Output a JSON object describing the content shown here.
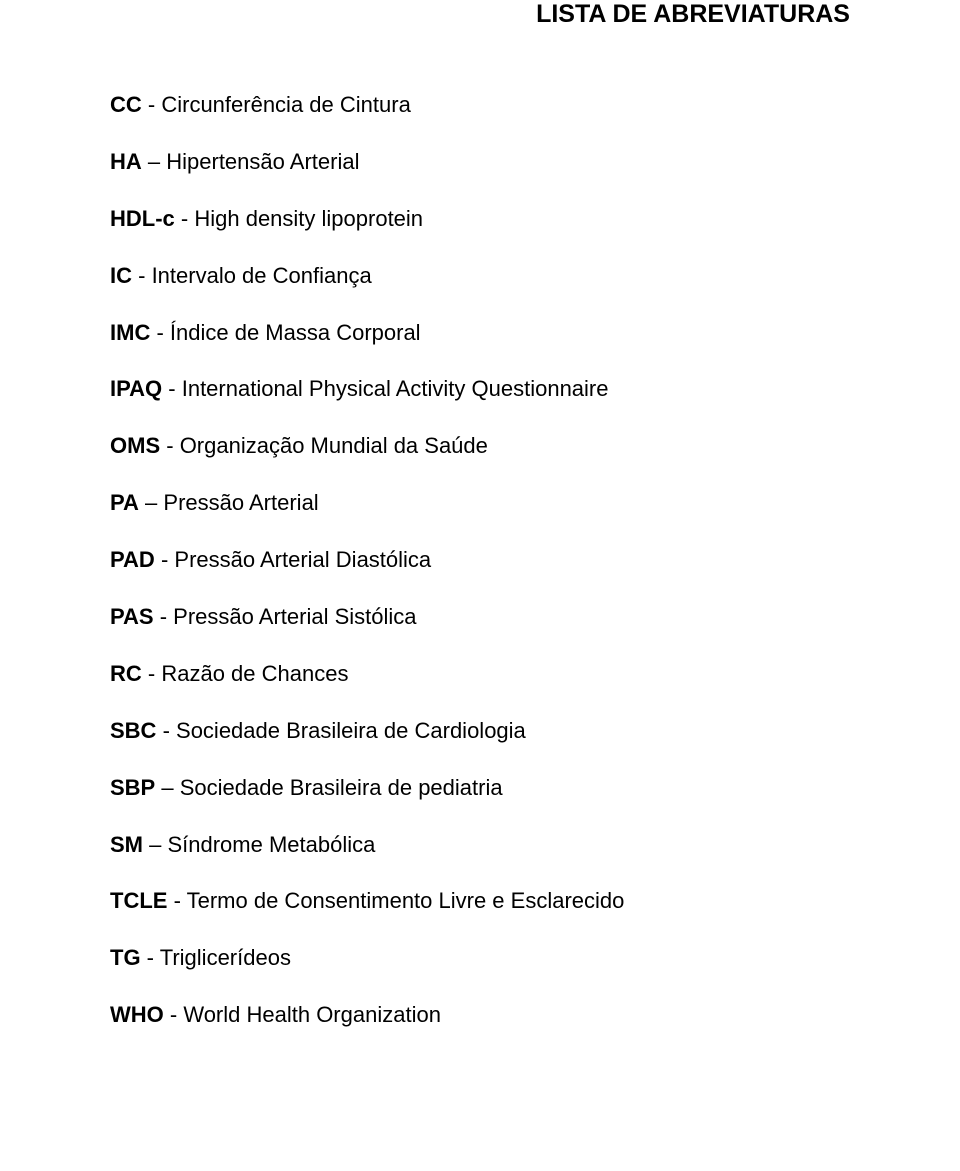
{
  "document": {
    "title": "LISTA DE ABREVIATURAS",
    "entries": [
      {
        "abbr": "CC",
        "separator": " - ",
        "definition": "Circunferência de Cintura"
      },
      {
        "abbr": "HA",
        "separator": " – ",
        "definition": "Hipertensão Arterial"
      },
      {
        "abbr": "HDL-c",
        "separator": " - ",
        "definition": "High density lipoprotein"
      },
      {
        "abbr": "IC",
        "separator": " - ",
        "definition": "Intervalo de Confiança"
      },
      {
        "abbr": "IMC",
        "separator": " - ",
        "definition": "Índice de Massa Corporal"
      },
      {
        "abbr": "IPAQ",
        "separator": " - ",
        "definition": "International Physical Activity Questionnaire"
      },
      {
        "abbr": "OMS",
        "separator": " - ",
        "definition": "Organização Mundial da Saúde"
      },
      {
        "abbr": "PA",
        "separator": " – ",
        "definition": "Pressão Arterial"
      },
      {
        "abbr": "PAD",
        "separator": " - ",
        "definition": "Pressão Arterial Diastólica"
      },
      {
        "abbr": "PAS",
        "separator": " - ",
        "definition": "Pressão Arterial Sistólica"
      },
      {
        "abbr": "RC",
        "separator": " - ",
        "definition": "Razão de Chances"
      },
      {
        "abbr": "SBC",
        "separator": " - ",
        "definition": "Sociedade Brasileira de Cardiologia"
      },
      {
        "abbr": "SBP",
        "separator": " – ",
        "definition": "Sociedade Brasileira de pediatria"
      },
      {
        "abbr": "SM",
        "separator": " – ",
        "definition": "Síndrome Metabólica"
      },
      {
        "abbr": "TCLE",
        "separator": " - ",
        "definition": "Termo de Consentimento Livre e Esclarecido"
      },
      {
        "abbr": "TG",
        "separator": " - ",
        "definition": "Triglicerídeos"
      },
      {
        "abbr": "WHO",
        "separator": " - ",
        "definition": "World Health Organization"
      }
    ]
  },
  "style": {
    "background_color": "#ffffff",
    "text_color": "#000000",
    "title_fontsize": 25,
    "body_fontsize": 22,
    "font_family": "Arial"
  }
}
